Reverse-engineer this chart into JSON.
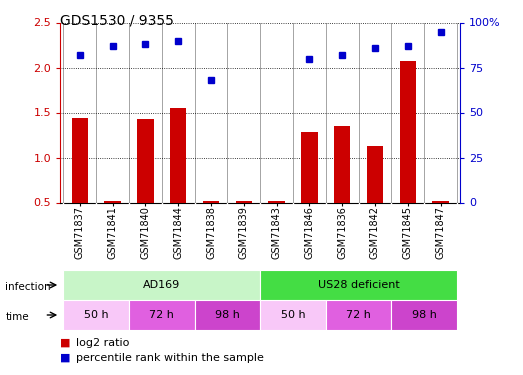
{
  "title": "GDS1530 / 9355",
  "samples": [
    "GSM71837",
    "GSM71841",
    "GSM71840",
    "GSM71844",
    "GSM71838",
    "GSM71839",
    "GSM71843",
    "GSM71846",
    "GSM71836",
    "GSM71842",
    "GSM71845",
    "GSM71847"
  ],
  "log2_ratio": [
    1.44,
    0.5,
    1.43,
    1.55,
    0.52,
    0.5,
    0.5,
    1.28,
    1.35,
    1.13,
    2.07,
    0.5
  ],
  "pct_rank": [
    82,
    87,
    88,
    90,
    68,
    null,
    null,
    80,
    82,
    86,
    87,
    95
  ],
  "bar_color": "#cc0000",
  "dot_color": "#0000cc",
  "ylim_left": [
    0.5,
    2.5
  ],
  "ylim_right": [
    0,
    100
  ],
  "yticks_left": [
    0.5,
    1.0,
    1.5,
    2.0,
    2.5
  ],
  "yticks_right": [
    0,
    25,
    50,
    75,
    100
  ],
  "infection_groups": [
    {
      "label": "AD169",
      "start": 0,
      "end": 6,
      "color": "#c8f5c8"
    },
    {
      "label": "US28 deficient",
      "start": 6,
      "end": 12,
      "color": "#44dd44"
    }
  ],
  "time_groups": [
    {
      "label": "50 h",
      "start": 0,
      "end": 2,
      "color": "#f8c8f8"
    },
    {
      "label": "72 h",
      "start": 2,
      "end": 4,
      "color": "#e060e0"
    },
    {
      "label": "98 h",
      "start": 4,
      "end": 6,
      "color": "#cc44cc"
    },
    {
      "label": "50 h",
      "start": 6,
      "end": 8,
      "color": "#f8c8f8"
    },
    {
      "label": "72 h",
      "start": 8,
      "end": 10,
      "color": "#e060e0"
    },
    {
      "label": "98 h",
      "start": 10,
      "end": 12,
      "color": "#cc44cc"
    }
  ],
  "sample_box_color": "#cccccc",
  "n_samples": 12
}
